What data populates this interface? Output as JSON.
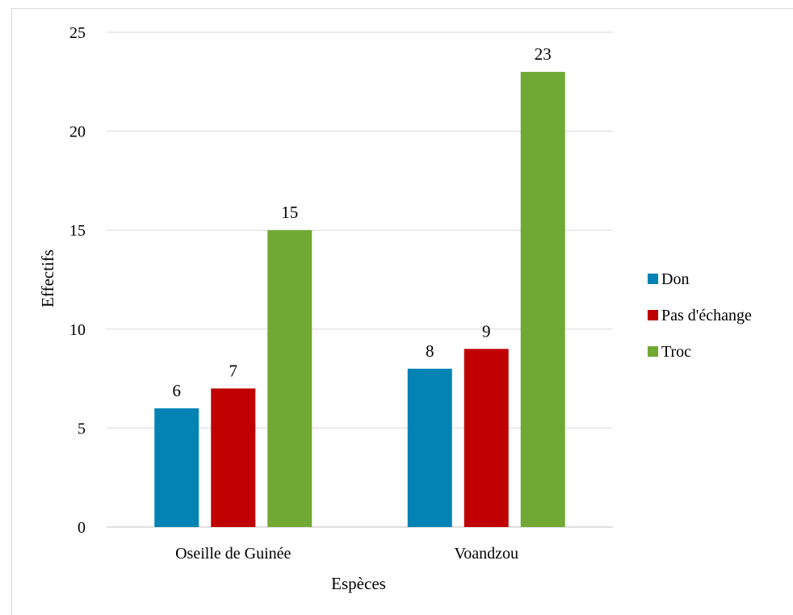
{
  "chart_data": {
    "type": "bar",
    "title": "",
    "xlabel": "Espèces",
    "ylabel": "Effectifs",
    "categories": [
      "Oseille de Guinée",
      "Voandzou"
    ],
    "series": [
      {
        "name": "Don",
        "values": [
          6,
          8
        ],
        "color": "#0283b4"
      },
      {
        "name": "Pas d'échange",
        "values": [
          7,
          9
        ],
        "color": "#c00000"
      },
      {
        "name": "Troc",
        "values": [
          15,
          23
        ],
        "color": "#70a934"
      }
    ],
    "ylim": [
      0,
      25
    ],
    "yticks": [
      0,
      5,
      10,
      15,
      20,
      25
    ],
    "grid": true,
    "legend_position": "right",
    "data_labels": true
  }
}
